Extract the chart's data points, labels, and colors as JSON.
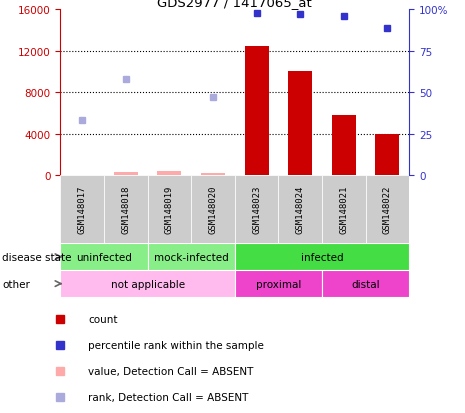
{
  "title": "GDS2977 / 1417065_at",
  "samples": [
    "GSM148017",
    "GSM148018",
    "GSM148019",
    "GSM148020",
    "GSM148023",
    "GSM148024",
    "GSM148021",
    "GSM148022"
  ],
  "bar_values": [
    null,
    null,
    null,
    null,
    12500,
    10000,
    5800,
    4000
  ],
  "bar_color": "#cc0000",
  "absent_bar_values": [
    null,
    300,
    400,
    150,
    null,
    null,
    null,
    null
  ],
  "absent_bar_color": "#ffaaaa",
  "blue_rank_values": [
    null,
    null,
    null,
    null,
    98,
    97,
    96,
    89
  ],
  "blue_square_color": "#3333cc",
  "absent_rank_values": [
    33,
    58,
    null,
    47,
    null,
    null,
    null,
    null
  ],
  "absent_blue_color": "#aaaadd",
  "ylim_left": [
    0,
    16000
  ],
  "yticks_left": [
    0,
    4000,
    8000,
    12000,
    16000
  ],
  "ylim_right": [
    0,
    100
  ],
  "yticks_right": [
    0,
    25,
    50,
    75,
    100
  ],
  "left_tick_color": "#cc0000",
  "right_tick_color": "#3333cc",
  "disease_state_groups": [
    {
      "label": "uninfected",
      "indices": [
        0,
        1
      ],
      "color": "#88ee88"
    },
    {
      "label": "mock-infected",
      "indices": [
        2,
        3
      ],
      "color": "#88ee88"
    },
    {
      "label": "infected",
      "indices": [
        4,
        5,
        6,
        7
      ],
      "color": "#44dd44"
    }
  ],
  "other_groups": [
    {
      "label": "not applicable",
      "indices": [
        0,
        1,
        2,
        3
      ],
      "color": "#ffbbee"
    },
    {
      "label": "proximal",
      "indices": [
        4,
        5
      ],
      "color": "#ee44cc"
    },
    {
      "label": "distal",
      "indices": [
        6,
        7
      ],
      "color": "#ee44cc"
    }
  ],
  "legend_items": [
    {
      "label": "count",
      "color": "#cc0000"
    },
    {
      "label": "percentile rank within the sample",
      "color": "#3333cc"
    },
    {
      "label": "value, Detection Call = ABSENT",
      "color": "#ffaaaa"
    },
    {
      "label": "rank, Detection Call = ABSENT",
      "color": "#aaaadd"
    }
  ],
  "n_samples": 8,
  "grid_lines": [
    4000,
    8000,
    12000
  ]
}
